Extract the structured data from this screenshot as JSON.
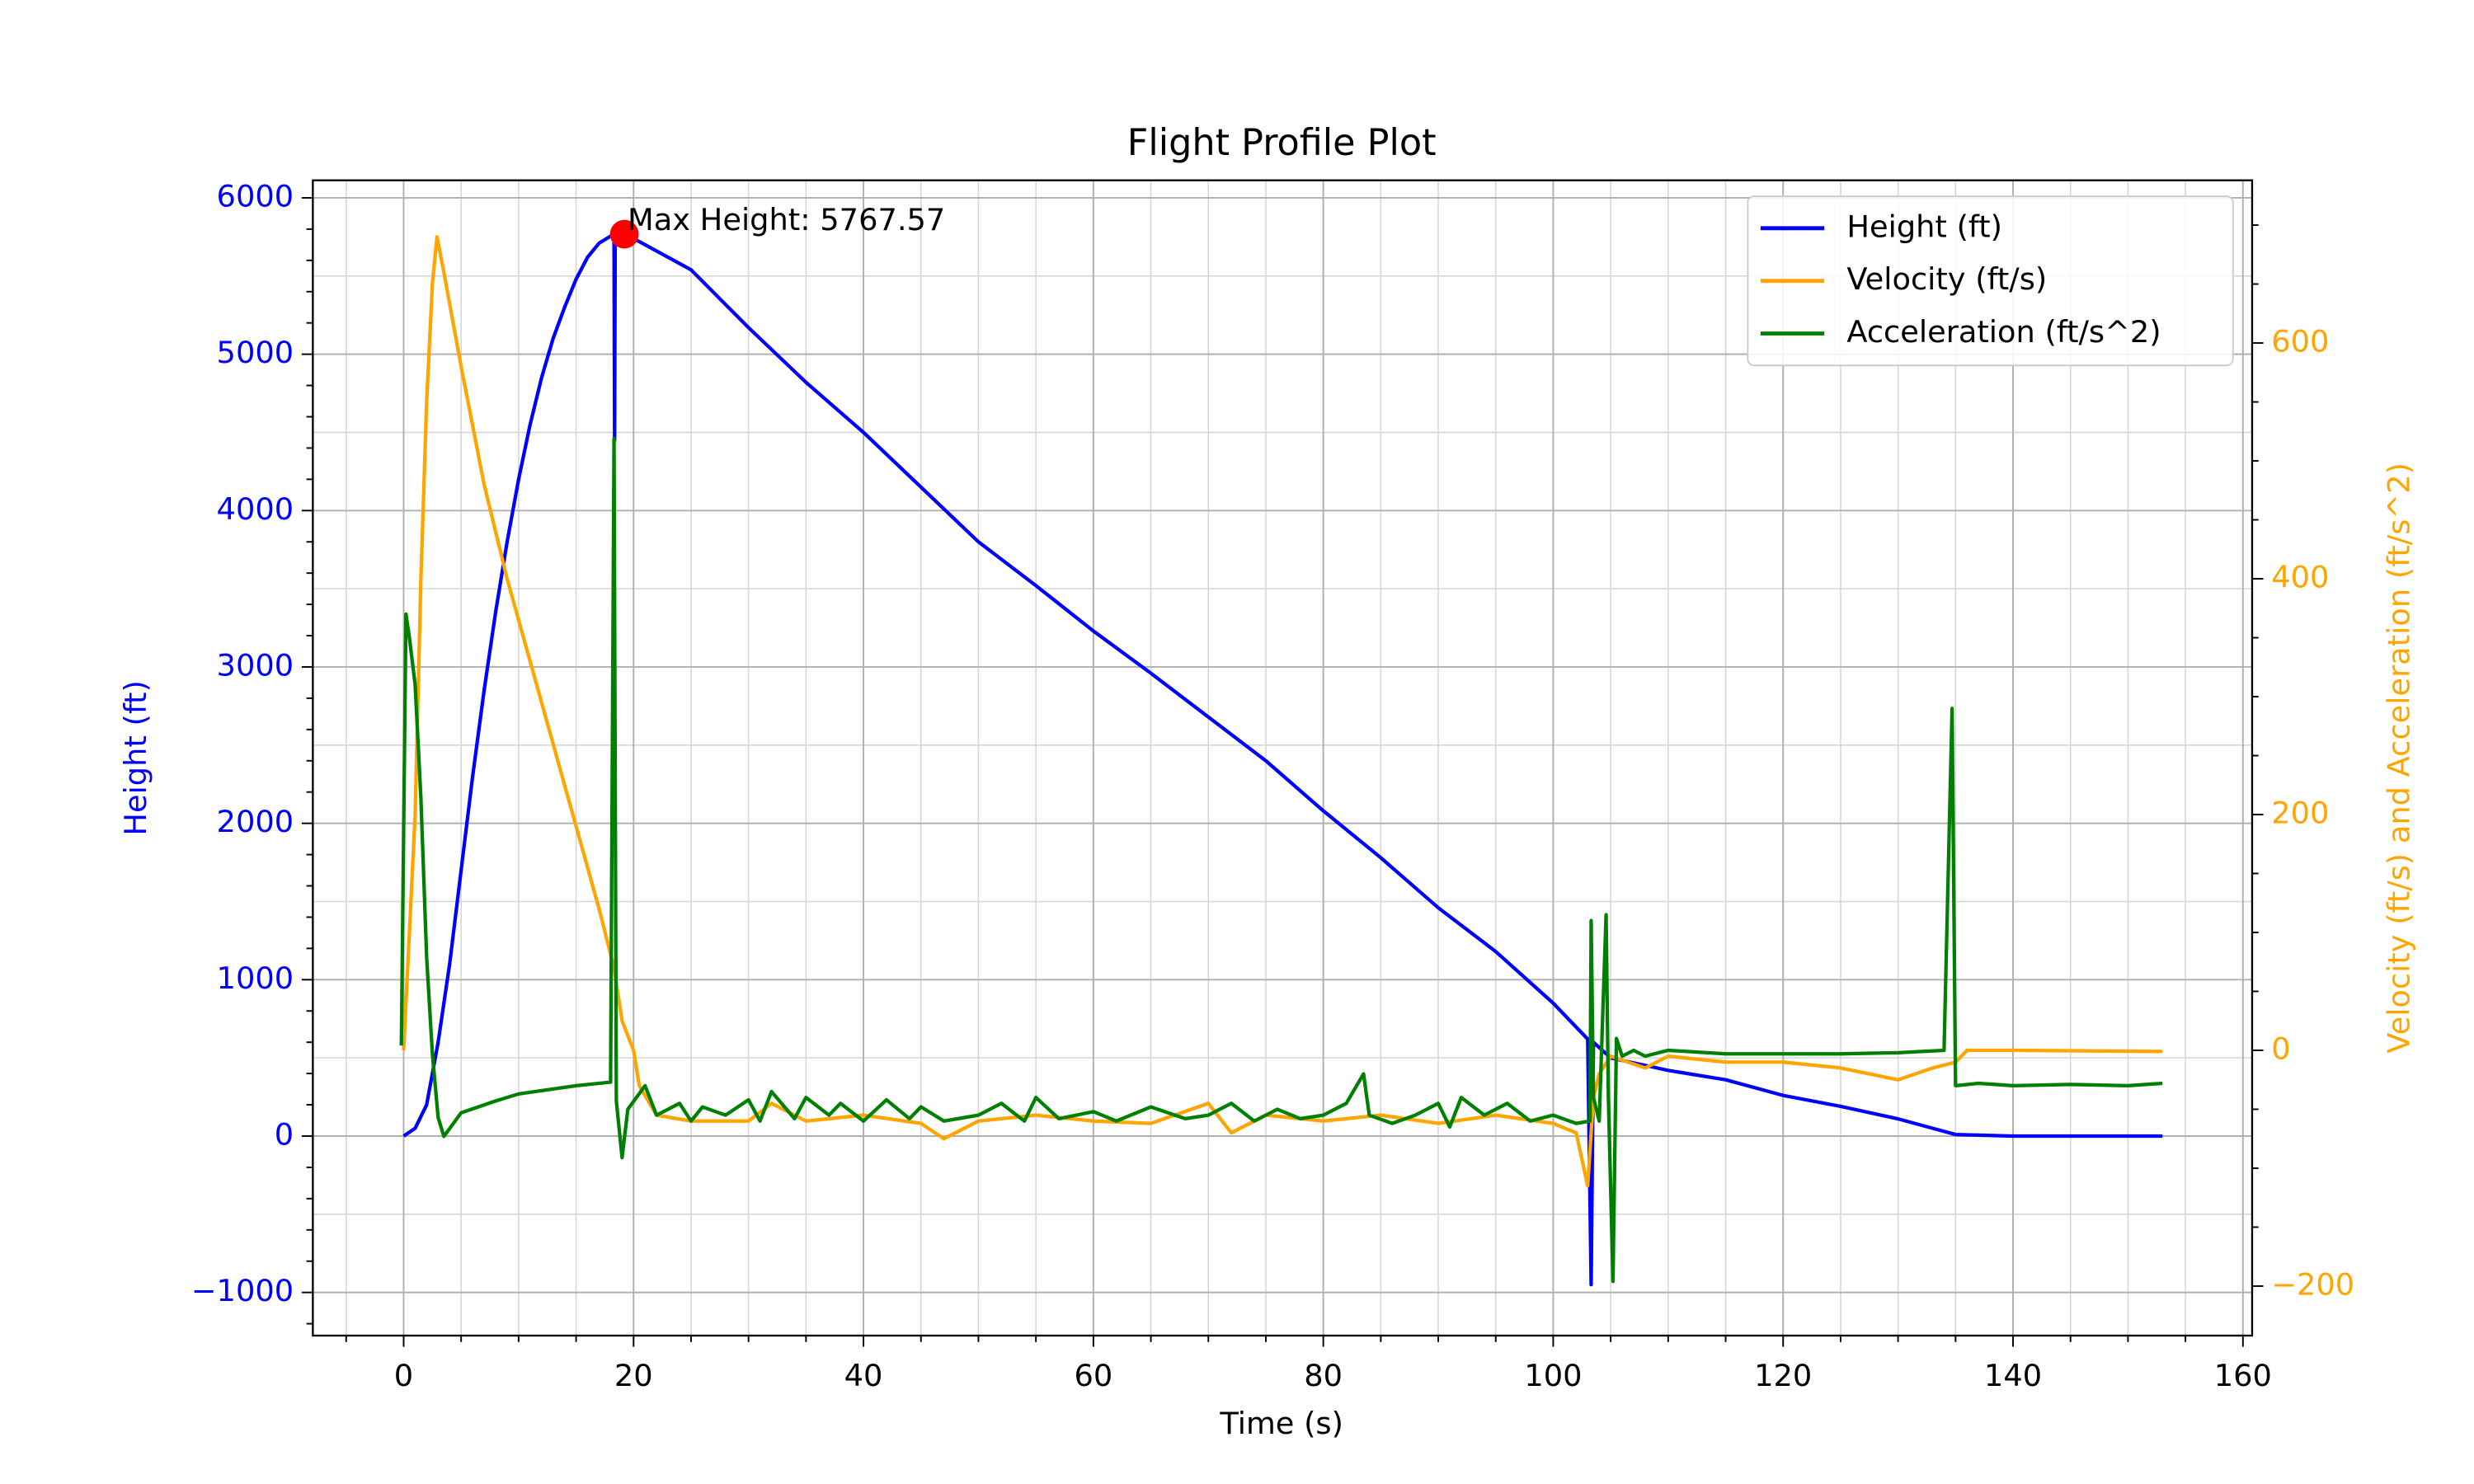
{
  "chart_data": {
    "type": "line",
    "title": "Flight Profile Plot",
    "x_label": "Time (s)",
    "y_label": "Height (ft)",
    "y2_label": "Velocity (ft/s) and Acceleration (ft/s^2)",
    "y_label_color": "#0000ff",
    "y2_label_color": "#ffa500",
    "xlim": [
      -7.9,
      160.8
    ],
    "ylim": [
      -1276,
      6112
    ],
    "y2lim": [
      -242,
      738
    ],
    "xticks": [
      0,
      20,
      40,
      60,
      80,
      100,
      120,
      140,
      160
    ],
    "yticks": [
      {
        "value": -1000,
        "label": "−1000"
      },
      0,
      1000,
      2000,
      3000,
      4000,
      5000,
      6000
    ],
    "y2ticks": [
      {
        "value": -200,
        "label": "−200"
      },
      0,
      200,
      400,
      600
    ],
    "grid": true,
    "minor_grid": true,
    "minor_divisions": {
      "x": 4,
      "y": 2,
      "y2": 4
    },
    "legend": "upper right",
    "series": [
      {
        "name": "Height (ft)",
        "color": "#0000ff",
        "x": [
          0,
          1,
          2,
          3,
          4,
          5,
          6,
          7,
          8,
          9,
          10,
          11,
          12,
          13,
          14,
          15,
          16,
          17,
          18,
          18.3,
          18.35,
          18.4,
          19.2,
          20,
          25,
          30,
          35,
          40,
          45,
          50,
          55,
          60,
          65,
          70,
          75,
          80,
          85,
          90,
          95,
          100,
          103,
          103.3,
          103.5,
          105,
          110,
          115,
          120,
          125,
          130,
          133,
          135,
          140,
          153
        ],
        "values": [
          0,
          50,
          200,
          600,
          1100,
          1700,
          2300,
          2850,
          3350,
          3800,
          4200,
          4550,
          4850,
          5100,
          5300,
          5480,
          5620,
          5710,
          5755,
          5760,
          4450,
          5760,
          5767.57,
          5740,
          5540,
          5170,
          4820,
          4500,
          4150,
          3800,
          3520,
          3230,
          2960,
          2680,
          2400,
          2080,
          1780,
          1460,
          1180,
          850,
          620,
          -950,
          600,
          500,
          420,
          360,
          260,
          190,
          110,
          50,
          10,
          0,
          0
        ]
      },
      {
        "name": "Velocity (ft/s)",
        "color": "#ffa500",
        "axis": "y2",
        "x": [
          0,
          1,
          1.5,
          2,
          2.5,
          2.9,
          3.5,
          5,
          7,
          9,
          11,
          13,
          15,
          17,
          18.3,
          19,
          20,
          20.5,
          22,
          25,
          30,
          32,
          35,
          40,
          45,
          47,
          50,
          55,
          60,
          65,
          70,
          72,
          75,
          80,
          85,
          90,
          95,
          100,
          102,
          103,
          103.5,
          104,
          105,
          108,
          110,
          115,
          120,
          125,
          130,
          133,
          135,
          136,
          140,
          153
        ],
        "values": [
          0,
          200,
          400,
          550,
          650,
          690,
          660,
          580,
          480,
          400,
          330,
          260,
          190,
          120,
          70,
          25,
          0,
          -30,
          -55,
          -60,
          -60,
          -45,
          -60,
          -55,
          -62,
          -75,
          -60,
          -55,
          -60,
          -62,
          -45,
          -70,
          -55,
          -60,
          -55,
          -62,
          -55,
          -62,
          -70,
          -115,
          -40,
          -20,
          -5,
          -15,
          -5,
          -10,
          -10,
          -15,
          -25,
          -15,
          -10,
          0,
          0,
          -1
        ]
      },
      {
        "name": "Acceleration (ft/s^2)",
        "color": "#008000",
        "axis": "y2",
        "x": [
          -0.2,
          0.2,
          0.5,
          1,
          1.5,
          2,
          2.5,
          3,
          3.5,
          5,
          8,
          10,
          15,
          18,
          18.3,
          18.5,
          19,
          19.5,
          21,
          22,
          24,
          25,
          26,
          28,
          30,
          31,
          32,
          34,
          35,
          37,
          38,
          40,
          42,
          44,
          45,
          47,
          50,
          52,
          54,
          55,
          57,
          60,
          62,
          65,
          68,
          70,
          72,
          74,
          76,
          78,
          80,
          82,
          83.5,
          84,
          86,
          88,
          90,
          91,
          92,
          94,
          96,
          98,
          100,
          102,
          103.2,
          103.3,
          103.5,
          104,
          104.6,
          104.8,
          105.2,
          105.5,
          106,
          107,
          108,
          110,
          115,
          120,
          125,
          130,
          134,
          134.7,
          135,
          137,
          140,
          145,
          150,
          153
        ],
        "values": [
          4,
          370,
          350,
          310,
          214,
          79,
          -3,
          -57,
          -73,
          -53,
          -43,
          -37,
          -30,
          -27,
          519,
          -43,
          -91,
          -50,
          -30,
          -55,
          -45,
          -60,
          -48,
          -55,
          -42,
          -60,
          -35,
          -58,
          -40,
          -55,
          -45,
          -60,
          -42,
          -58,
          -48,
          -60,
          -55,
          -45,
          -60,
          -40,
          -58,
          -52,
          -60,
          -48,
          -58,
          -55,
          -45,
          -60,
          -50,
          -58,
          -55,
          -45,
          -20,
          -55,
          -62,
          -55,
          -45,
          -65,
          -40,
          -55,
          -45,
          -60,
          -55,
          -62,
          -60,
          110,
          -40,
          -60,
          115,
          -40,
          -196,
          10,
          -5,
          0,
          -5,
          0,
          -3,
          -3,
          -3,
          -2,
          0,
          290,
          -30,
          -28,
          -30,
          -29,
          -30,
          -28
        ]
      }
    ],
    "annotation": {
      "text": "Max Height: 5767.57",
      "x": 19.2,
      "y": 5767.57,
      "color": "#ff0000"
    }
  }
}
